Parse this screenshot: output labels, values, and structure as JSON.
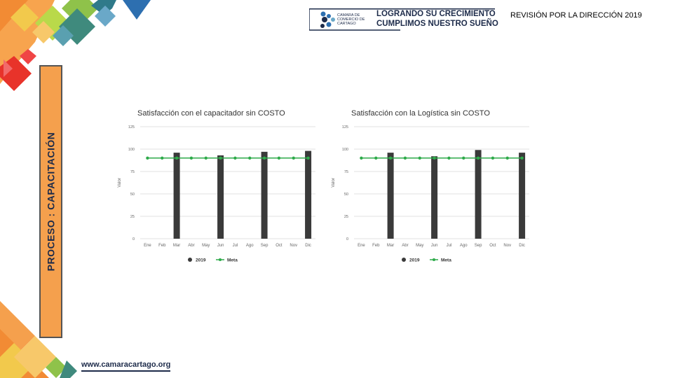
{
  "header": {
    "org_name": "CAMARA DE COMERCIO DE CARTAGO",
    "slogan_line1": "LOGRANDO SU CRECIMIENTO",
    "slogan_line2": "CUMPLIMOS NUESTRO SUEÑO",
    "review_title": "REVISIÓN POR LA DIRECCIÓN 2019"
  },
  "sidebar": {
    "process_label": "PROCESO : CAPACITACIÓN"
  },
  "footer": {
    "website": "www.camaracartago.org"
  },
  "colors": {
    "bar": "#3a3a3a",
    "goal": "#2eaa4a",
    "side_panel": "#f5a04d",
    "brand": "#1d2b4a"
  },
  "chart_data": [
    {
      "type": "bar",
      "title": "Satisfacción con el capacitador sin COSTO",
      "ylabel": "Valor",
      "ylim": [
        0,
        125
      ],
      "yticks": [
        0,
        25,
        50,
        75,
        100,
        125
      ],
      "categories": [
        "Ene",
        "Feb",
        "Mar",
        "Abr",
        "May",
        "Jun",
        "Jul",
        "Ago",
        "Sep",
        "Oct",
        "Nov",
        "Dic"
      ],
      "series": [
        {
          "name": "2019",
          "kind": "bar",
          "values": [
            null,
            null,
            96,
            null,
            null,
            93,
            null,
            null,
            97,
            null,
            null,
            98
          ]
        },
        {
          "name": "Meta",
          "kind": "line",
          "values": [
            90,
            90,
            90,
            90,
            90,
            90,
            90,
            90,
            90,
            90,
            90,
            90
          ]
        }
      ],
      "legend": "bottom",
      "grid": true
    },
    {
      "type": "bar",
      "title": "Satisfacción con la Logística sin COSTO",
      "ylabel": "Valor",
      "ylim": [
        0,
        125
      ],
      "yticks": [
        0,
        25,
        50,
        75,
        100,
        125
      ],
      "categories": [
        "Ene",
        "Feb",
        "Mar",
        "Abr",
        "May",
        "Jun",
        "Jul",
        "Ago",
        "Sep",
        "Oct",
        "Nov",
        "Dic"
      ],
      "series": [
        {
          "name": "2019",
          "kind": "bar",
          "values": [
            null,
            null,
            96,
            null,
            null,
            92,
            null,
            null,
            99,
            null,
            null,
            96
          ]
        },
        {
          "name": "Meta",
          "kind": "line",
          "values": [
            90,
            90,
            90,
            90,
            90,
            90,
            90,
            90,
            90,
            90,
            90,
            90
          ]
        }
      ],
      "legend": "bottom",
      "grid": true
    }
  ]
}
